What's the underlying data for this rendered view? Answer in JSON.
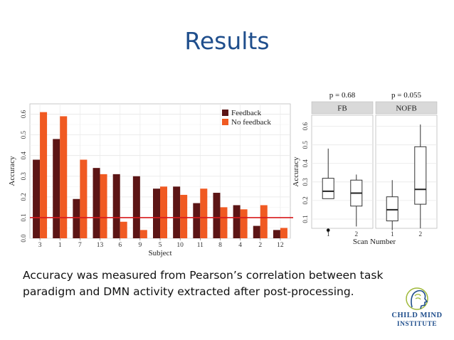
{
  "slide": {
    "title": "Results",
    "caption": "Accuracy was measured from Pearson’s correlation between task paradigm and DMN activity extracted after post-processing."
  },
  "logo": {
    "line1": "Child Mind",
    "line2": "Institute",
    "icon": "head-profile-icon",
    "color": "#1f4e8c"
  },
  "chart_data": [
    {
      "type": "bar",
      "title": "",
      "xlabel": "Subject",
      "ylabel": "Accuracy",
      "ylim": [
        0,
        0.65
      ],
      "yticks": [
        "0.0",
        "0.1",
        "0.2",
        "0.3",
        "0.4",
        "0.5",
        "0.6"
      ],
      "grid": true,
      "legend_position": "top-right",
      "categories": [
        "3",
        "1",
        "7",
        "13",
        "6",
        "9",
        "5",
        "10",
        "11",
        "8",
        "4",
        "2",
        "12"
      ],
      "series": [
        {
          "name": "Feedback",
          "color": "#5c1515",
          "values": [
            0.38,
            0.48,
            0.19,
            0.34,
            0.31,
            0.3,
            0.24,
            0.25,
            0.17,
            0.22,
            0.16,
            0.06,
            0.04
          ]
        },
        {
          "name": "No feedback",
          "color": "#f05a22",
          "values": [
            0.61,
            0.59,
            0.38,
            0.31,
            0.08,
            0.04,
            0.25,
            0.21,
            0.24,
            0.15,
            0.14,
            0.16,
            0.05
          ]
        }
      ],
      "reference_line": {
        "value": 0.1,
        "color": "#d7191c"
      }
    },
    {
      "type": "box",
      "xlabel": "Scan Number",
      "ylabel": "Accuracy",
      "ylim": [
        0.05,
        0.66
      ],
      "yticks": [
        "0.1",
        "0.2",
        "0.3",
        "0.4",
        "0.5",
        "0.6"
      ],
      "panels": [
        {
          "strip": "FB",
          "pvalue": "p = 0.68",
          "boxes": [
            {
              "x": "1",
              "min": 0.21,
              "q1": 0.21,
              "median": 0.25,
              "q3": 0.32,
              "max": 0.48,
              "outliers": [
                0.04
              ]
            },
            {
              "x": "2",
              "min": 0.06,
              "q1": 0.17,
              "median": 0.24,
              "q3": 0.31,
              "max": 0.34,
              "outliers": []
            }
          ]
        },
        {
          "strip": "NOFB",
          "pvalue": "p = 0.055",
          "boxes": [
            {
              "x": "1",
              "min": 0.04,
              "q1": 0.09,
              "median": 0.15,
              "q3": 0.22,
              "max": 0.31,
              "outliers": []
            },
            {
              "x": "2",
              "min": 0.05,
              "q1": 0.18,
              "median": 0.26,
              "q3": 0.49,
              "max": 0.61,
              "outliers": []
            }
          ]
        }
      ]
    }
  ]
}
